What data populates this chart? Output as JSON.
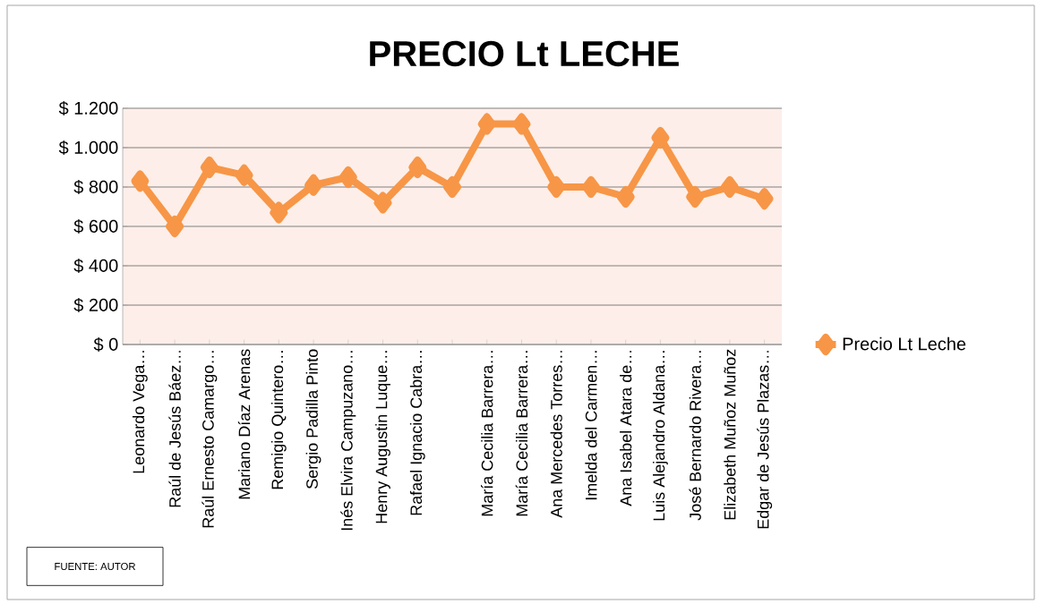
{
  "chart_data": {
    "type": "line",
    "title": "PRECIO Lt LECHE",
    "categories": [
      "Leonardo Vega…",
      "Raúl de Jesús Báez…",
      "Raúl Ernesto Camargo…",
      "Mariano Díaz Arenas",
      "Remigio Quintero…",
      "Sergio Padilla Pinto",
      "Inés Elvira Campuzano…",
      "Henry Augustin Luque…",
      "Rafael Ignacio Cabra…",
      null,
      "María Cecilia Barrera…",
      "María Cecilia Barrera…",
      "Ana Mercedes Torres…",
      "Imelda del Carmen…",
      "Ana Isabel Atara de…",
      "Luis Alejandro Aldana…",
      "José Bernardo Rivera…",
      "Elizabeth Muñoz Muñoz",
      "Edgar de Jesús Plazas…"
    ],
    "series": [
      {
        "name": "Precio Lt Leche",
        "color": "#f79646",
        "values": [
          830,
          600,
          900,
          860,
          670,
          810,
          850,
          720,
          900,
          800,
          1120,
          1120,
          800,
          800,
          750,
          1050,
          750,
          800,
          740
        ]
      }
    ],
    "ylim": [
      0,
      1200
    ],
    "yticks": [
      {
        "value": 0,
        "label": "$ 0"
      },
      {
        "value": 200,
        "label": "$ 200"
      },
      {
        "value": 400,
        "label": "$ 400"
      },
      {
        "value": 600,
        "label": "$ 600"
      },
      {
        "value": 800,
        "label": "$ 800"
      },
      {
        "value": 1000,
        "label": "$ 1.000"
      },
      {
        "value": 1200,
        "label": "$ 1.200"
      }
    ],
    "grid": "y",
    "legend": "right",
    "marker": "diamond",
    "line_style": "solid",
    "annotations": [
      "FUENTE: AUTOR"
    ]
  }
}
